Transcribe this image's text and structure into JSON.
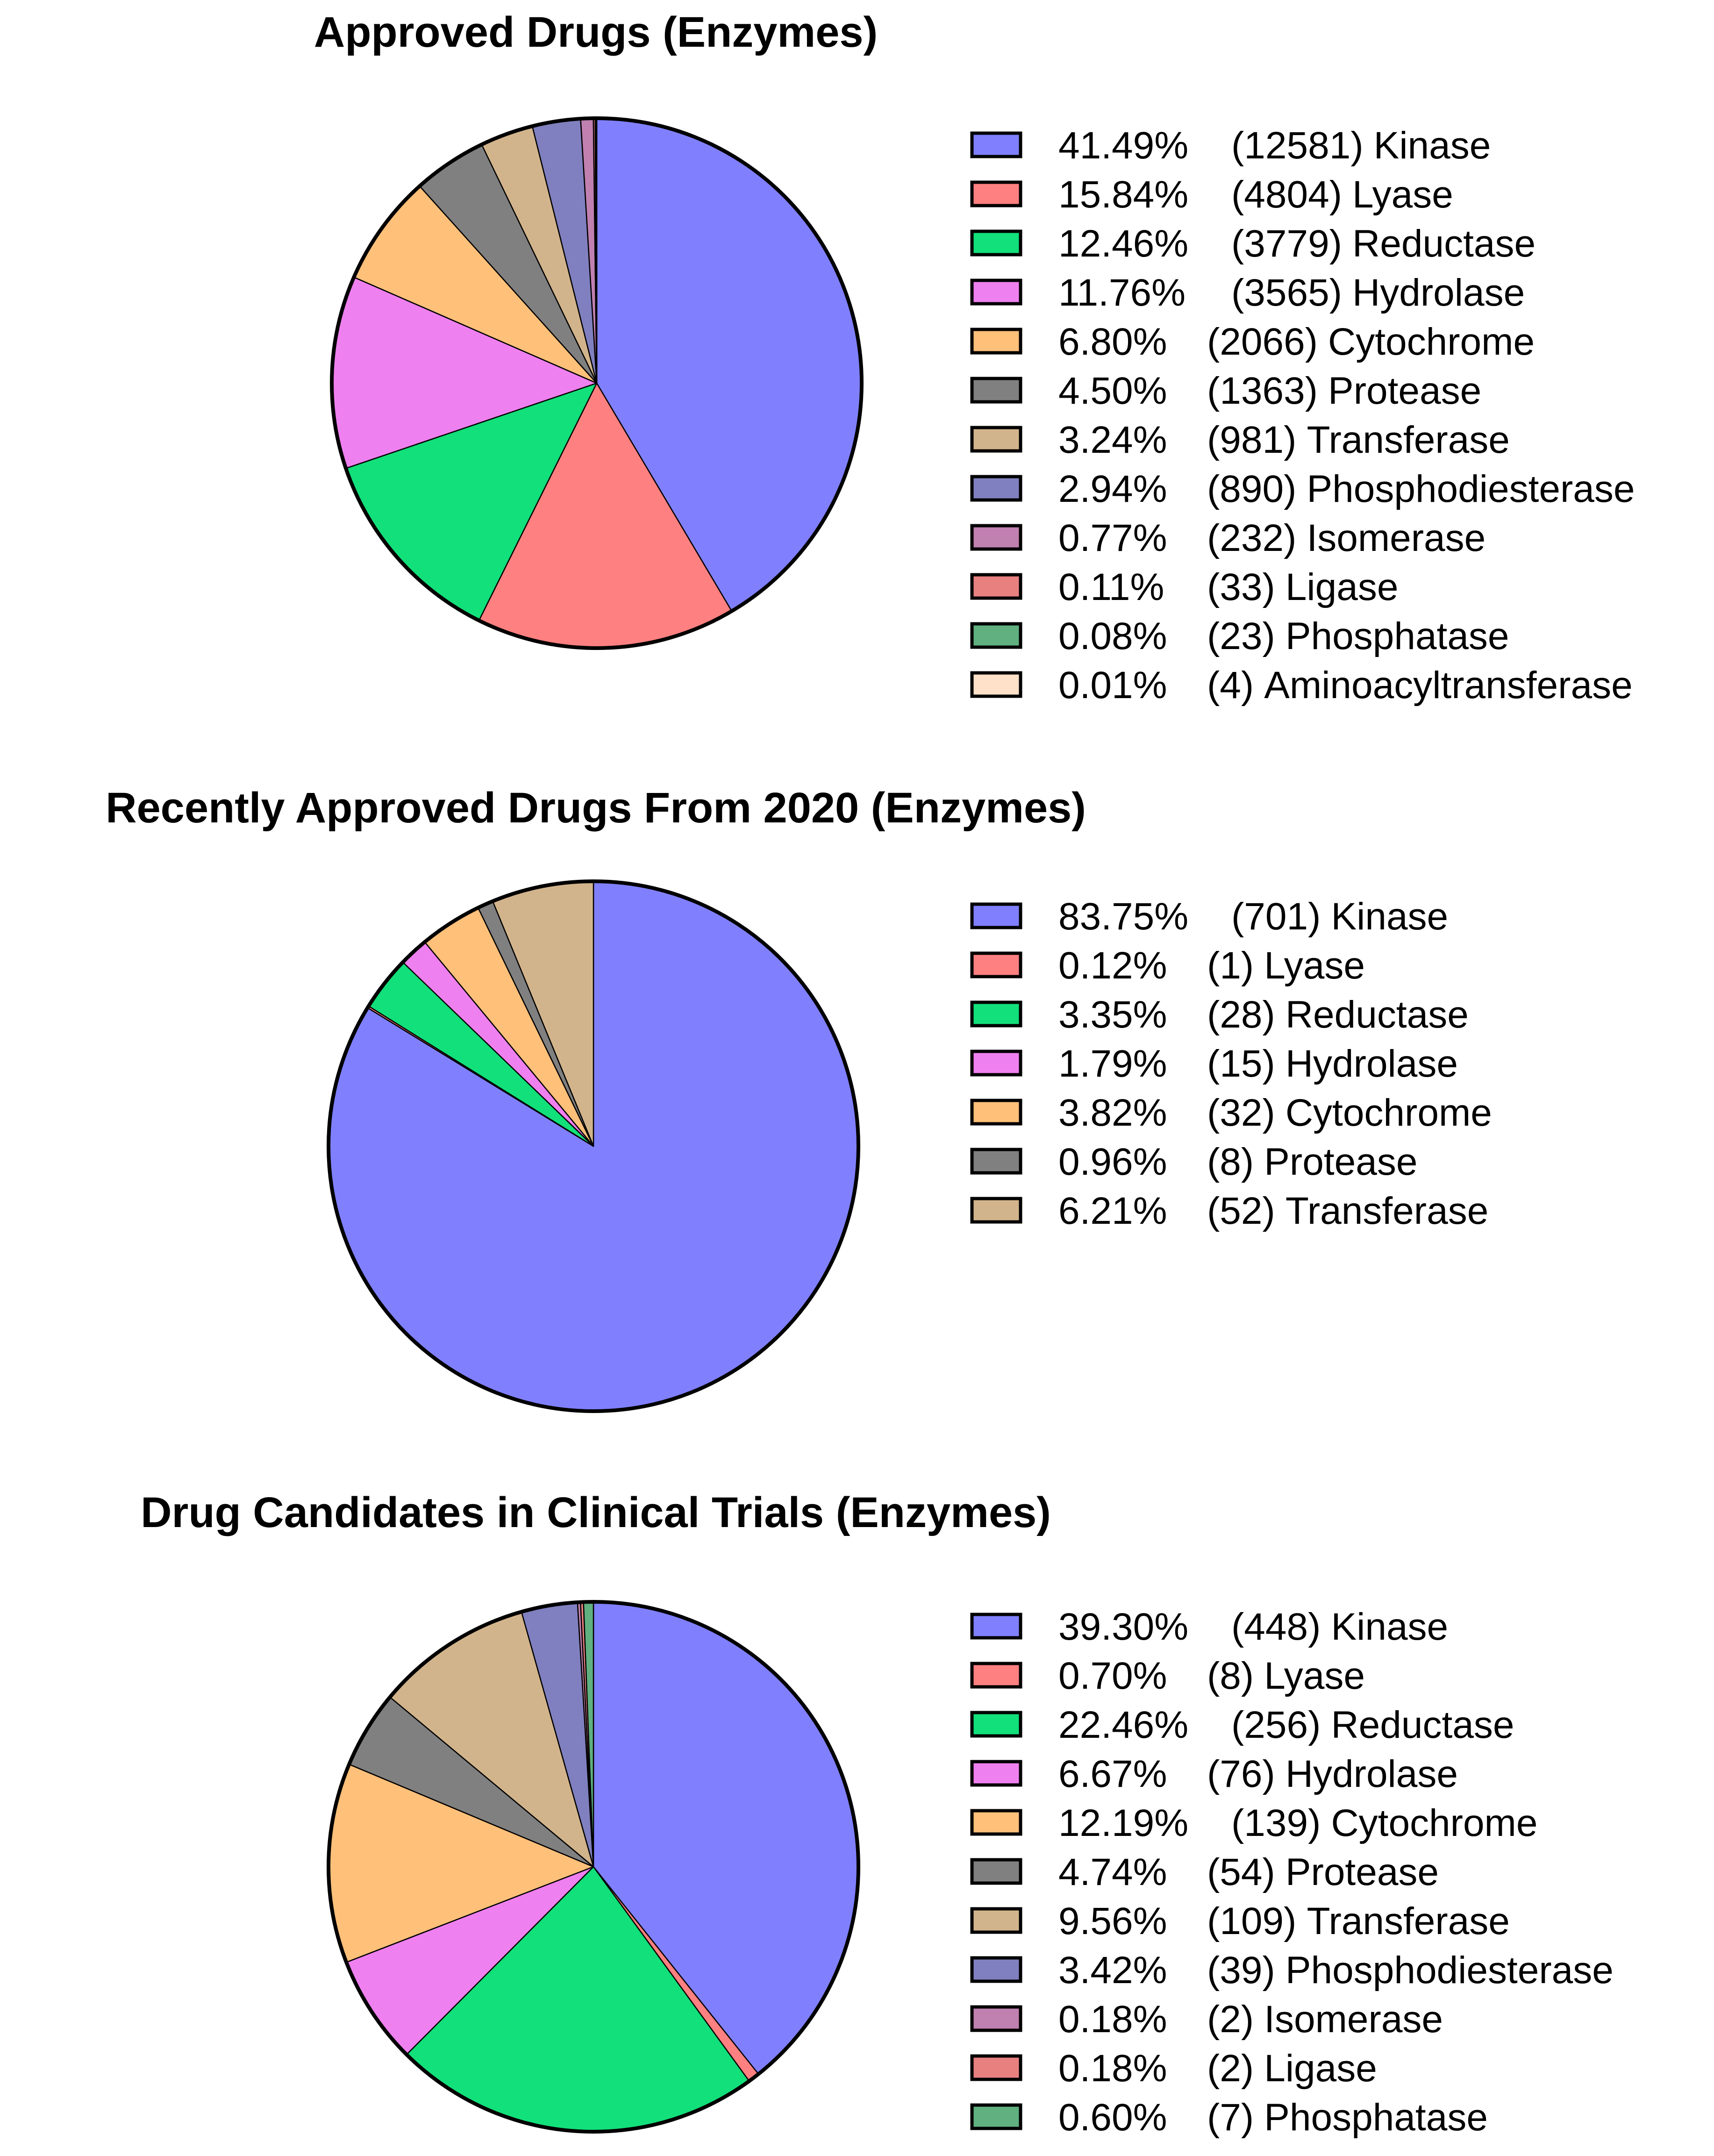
{
  "chart_data": [
    {
      "type": "pie",
      "title": "Approved Drugs (Enzymes)",
      "slices": [
        {
          "label": "Kinase",
          "percent": 41.49,
          "percent_text": "41.49%",
          "count": 12581,
          "count_text": "(12581)",
          "color": "#8080ff"
        },
        {
          "label": "Lyase",
          "percent": 15.84,
          "percent_text": "15.84%",
          "count": 4804,
          "count_text": "(4804)",
          "color": "#ff8080"
        },
        {
          "label": "Reductase",
          "percent": 12.46,
          "percent_text": "12.46%",
          "count": 3779,
          "count_text": "(3779)",
          "color": "#12e07a"
        },
        {
          "label": "Hydrolase",
          "percent": 11.76,
          "percent_text": "11.76%",
          "count": 3565,
          "count_text": "(3565)",
          "color": "#ef80ef"
        },
        {
          "label": "Cytochrome",
          "percent": 6.8,
          "percent_text": "6.80%",
          "count": 2066,
          "count_text": "(2066)",
          "color": "#ffc07a"
        },
        {
          "label": "Protease",
          "percent": 4.5,
          "percent_text": "4.50%",
          "count": 1363,
          "count_text": "(1363)",
          "color": "#808080"
        },
        {
          "label": "Transferase",
          "percent": 3.24,
          "percent_text": "3.24%",
          "count": 981,
          "count_text": "(981)",
          "color": "#d2b48c"
        },
        {
          "label": "Phosphodiesterase",
          "percent": 2.94,
          "percent_text": "2.94%",
          "count": 890,
          "count_text": "(890)",
          "color": "#8080c0"
        },
        {
          "label": "Isomerase",
          "percent": 0.77,
          "percent_text": "0.77%",
          "count": 232,
          "count_text": "(232)",
          "color": "#c080b0"
        },
        {
          "label": "Ligase",
          "percent": 0.11,
          "percent_text": "0.11%",
          "count": 33,
          "count_text": "(33)",
          "color": "#e88080"
        },
        {
          "label": "Phosphatase",
          "percent": 0.08,
          "percent_text": "0.08%",
          "count": 23,
          "count_text": "(23)",
          "color": "#60b080"
        },
        {
          "label": "Aminoacyltransferase",
          "percent": 0.01,
          "percent_text": "0.01%",
          "count": 4,
          "count_text": "(4)",
          "color": "#ffe0c8"
        }
      ]
    },
    {
      "type": "pie",
      "title": "Recently Approved Drugs From 2020 (Enzymes)",
      "slices": [
        {
          "label": "Kinase",
          "percent": 83.75,
          "percent_text": "83.75%",
          "count": 701,
          "count_text": "(701)",
          "color": "#8080ff"
        },
        {
          "label": "Lyase",
          "percent": 0.12,
          "percent_text": "0.12%",
          "count": 1,
          "count_text": "(1)",
          "color": "#ff8080"
        },
        {
          "label": "Reductase",
          "percent": 3.35,
          "percent_text": "3.35%",
          "count": 28,
          "count_text": "(28)",
          "color": "#12e07a"
        },
        {
          "label": "Hydrolase",
          "percent": 1.79,
          "percent_text": "1.79%",
          "count": 15,
          "count_text": "(15)",
          "color": "#ef80ef"
        },
        {
          "label": "Cytochrome",
          "percent": 3.82,
          "percent_text": "3.82%",
          "count": 32,
          "count_text": "(32)",
          "color": "#ffc07a"
        },
        {
          "label": "Protease",
          "percent": 0.96,
          "percent_text": "0.96%",
          "count": 8,
          "count_text": "(8)",
          "color": "#808080"
        },
        {
          "label": "Transferase",
          "percent": 6.21,
          "percent_text": "6.21%",
          "count": 52,
          "count_text": "(52)",
          "color": "#d2b48c"
        }
      ]
    },
    {
      "type": "pie",
      "title": "Drug Candidates in Clinical Trials (Enzymes)",
      "slices": [
        {
          "label": "Kinase",
          "percent": 39.3,
          "percent_text": "39.30%",
          "count": 448,
          "count_text": "(448)",
          "color": "#8080ff"
        },
        {
          "label": "Lyase",
          "percent": 0.7,
          "percent_text": "0.70%",
          "count": 8,
          "count_text": "(8)",
          "color": "#ff8080"
        },
        {
          "label": "Reductase",
          "percent": 22.46,
          "percent_text": "22.46%",
          "count": 256,
          "count_text": "(256)",
          "color": "#12e07a"
        },
        {
          "label": "Hydrolase",
          "percent": 6.67,
          "percent_text": "6.67%",
          "count": 76,
          "count_text": "(76)",
          "color": "#ef80ef"
        },
        {
          "label": "Cytochrome",
          "percent": 12.19,
          "percent_text": "12.19%",
          "count": 139,
          "count_text": "(139)",
          "color": "#ffc07a"
        },
        {
          "label": "Protease",
          "percent": 4.74,
          "percent_text": "4.74%",
          "count": 54,
          "count_text": "(54)",
          "color": "#808080"
        },
        {
          "label": "Transferase",
          "percent": 9.56,
          "percent_text": "9.56%",
          "count": 109,
          "count_text": "(109)",
          "color": "#d2b48c"
        },
        {
          "label": "Phosphodiesterase",
          "percent": 3.42,
          "percent_text": "3.42%",
          "count": 39,
          "count_text": "(39)",
          "color": "#8080c0"
        },
        {
          "label": "Isomerase",
          "percent": 0.18,
          "percent_text": "0.18%",
          "count": 2,
          "count_text": "(2)",
          "color": "#c080b0"
        },
        {
          "label": "Ligase",
          "percent": 0.18,
          "percent_text": "0.18%",
          "count": 2,
          "count_text": "(2)",
          "color": "#e88080"
        },
        {
          "label": "Phosphatase",
          "percent": 0.6,
          "percent_text": "0.60%",
          "count": 7,
          "count_text": "(7)",
          "color": "#60b080"
        }
      ]
    }
  ]
}
